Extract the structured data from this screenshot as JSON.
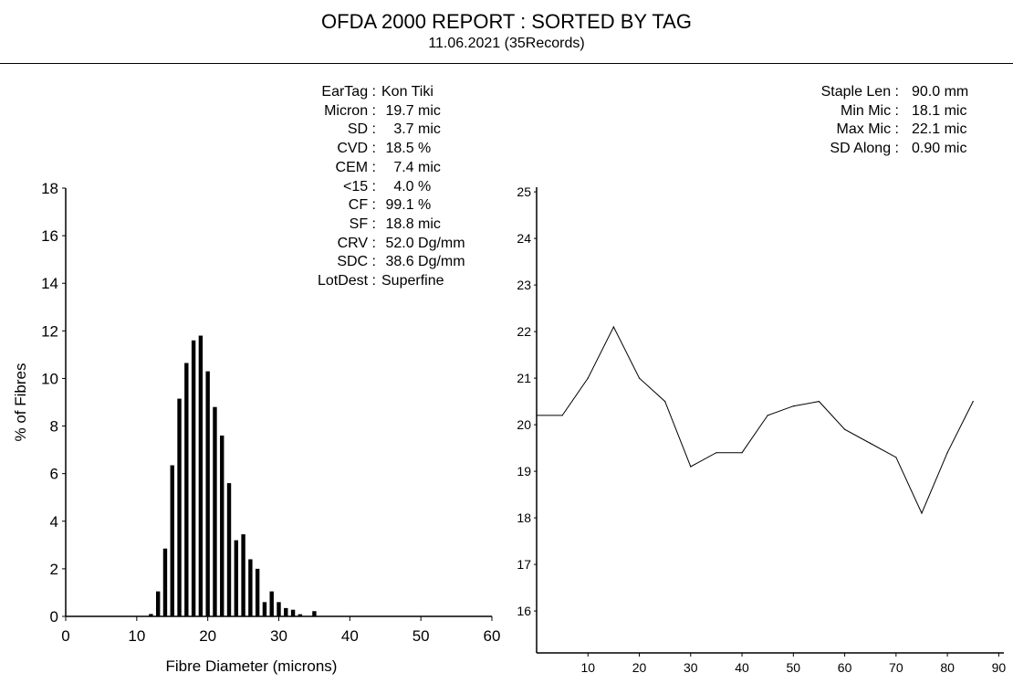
{
  "header": {
    "title": "OFDA 2000 REPORT : SORTED BY TAG",
    "subtitle": "11.06.2021 (35Records)"
  },
  "stats_left": [
    {
      "label": "EarTag :",
      "value": "Kon Tiki"
    },
    {
      "label": "Micron :",
      "value": " 19.7 mic"
    },
    {
      "label": "SD :",
      "value": "   3.7 mic"
    },
    {
      "label": "CVD :",
      "value": " 18.5 %"
    },
    {
      "label": "CEM :",
      "value": "   7.4 mic"
    },
    {
      "label": "<15 :",
      "value": "   4.0 %"
    },
    {
      "label": "CF :",
      "value": " 99.1 %"
    },
    {
      "label": "SF :",
      "value": " 18.8 mic"
    },
    {
      "label": "CRV :",
      "value": " 52.0 Dg/mm"
    },
    {
      "label": "SDC :",
      "value": " 38.6 Dg/mm"
    },
    {
      "label": "LotDest :",
      "value": "Superfine"
    }
  ],
  "stats_right": [
    {
      "label": "Staple Len :",
      "value": "90.0 mm"
    },
    {
      "label": "Min Mic :",
      "value": "18.1 mic"
    },
    {
      "label": "Max Mic :",
      "value": "22.1 mic"
    },
    {
      "label": "SD Along :",
      "value": "0.90 mic"
    }
  ],
  "chart_data": [
    {
      "type": "bar",
      "title": "",
      "xlabel": "Fibre Diameter (microns)",
      "ylabel": "% of Fibres",
      "xlim": [
        0,
        60
      ],
      "ylim": [
        0,
        18
      ],
      "xticks": [
        0,
        10,
        20,
        30,
        40,
        50,
        60
      ],
      "yticks": [
        0,
        2,
        4,
        6,
        8,
        10,
        12,
        14,
        16,
        18
      ],
      "x": [
        12,
        13,
        14,
        15,
        16,
        17,
        18,
        19,
        20,
        21,
        22,
        23,
        24,
        25,
        26,
        27,
        28,
        29,
        30,
        31,
        32,
        33,
        35
      ],
      "values": [
        0.1,
        1.05,
        2.85,
        6.35,
        9.15,
        10.65,
        11.6,
        11.8,
        10.3,
        8.8,
        7.6,
        5.6,
        3.2,
        3.45,
        2.4,
        2.0,
        0.6,
        1.05,
        0.6,
        0.35,
        0.28,
        0.09,
        0.22
      ],
      "bar_color": "#000000",
      "grid": false
    },
    {
      "type": "line",
      "title": "",
      "xlabel": "",
      "ylabel": "",
      "xlim": [
        0,
        91
      ],
      "ylim": [
        15.1,
        25.1
      ],
      "xticks": [
        10,
        20,
        30,
        40,
        50,
        60,
        70,
        80,
        90
      ],
      "yticks": [
        16,
        17,
        18,
        19,
        20,
        21,
        22,
        23,
        24,
        25
      ],
      "x": [
        0,
        5,
        10,
        15,
        20,
        25,
        30,
        35,
        40,
        45,
        50,
        55,
        60,
        65,
        70,
        75,
        80,
        85
      ],
      "values": [
        20.2,
        20.2,
        21.0,
        22.1,
        21.0,
        20.5,
        19.1,
        19.4,
        19.4,
        20.2,
        20.4,
        20.5,
        19.9,
        19.6,
        19.3,
        18.1,
        19.4,
        20.5
      ],
      "line_color": "#000000",
      "grid": false
    }
  ]
}
